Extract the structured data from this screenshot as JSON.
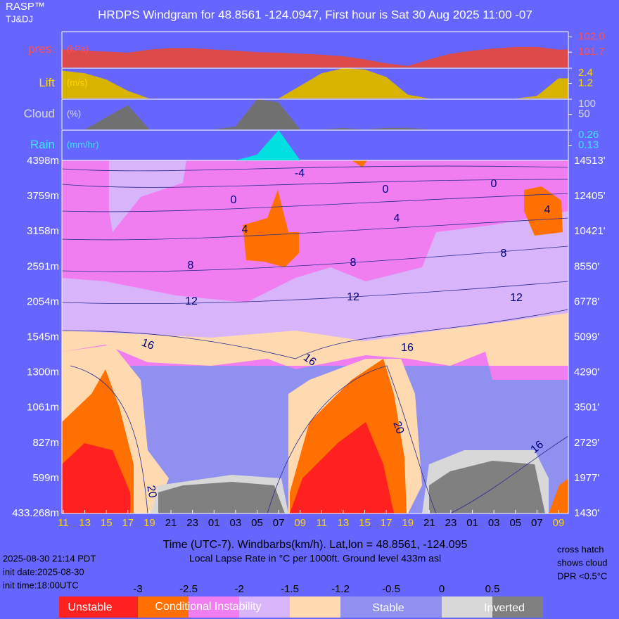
{
  "header": {
    "brand": "RASP™",
    "authors": "TJ&DJ",
    "title": "HRDPS Windgram for 48.8561 -124.0947, First hour is Sat 30 Aug 2025 11:00 -07"
  },
  "chart_data": [
    {
      "type": "area",
      "label": "pres.",
      "unit_label": "(kPa)",
      "color": "#dc4a4a",
      "label_color": "#ff5050",
      "values": [
        101.75,
        101.73,
        101.71,
        101.69,
        101.75,
        101.78,
        101.78,
        101.75,
        101.73,
        101.7,
        101.69,
        101.67,
        101.65,
        101.62,
        101.56,
        101.48,
        101.43,
        101.56,
        101.67,
        101.73,
        101.77,
        101.8,
        101.8,
        101.75
      ],
      "ylim": [
        101.4,
        102.1
      ],
      "yticks": [
        {
          "value": 102,
          "label": "102.0"
        },
        101.7
      ]
    },
    {
      "type": "area",
      "label": "Lift",
      "unit_label": "(m/s)",
      "color": "#d8b400",
      "label_color": "#ffd700",
      "values": [
        2.2,
        2.0,
        1.5,
        0.6,
        0,
        0,
        0,
        0,
        0,
        0,
        0,
        1.0,
        2.0,
        2.4,
        2.3,
        1.7,
        0.3,
        0,
        0,
        0,
        0,
        0,
        0.2,
        1.6
      ],
      "ylim": [
        0,
        2.4
      ],
      "yticks": [
        2.4,
        1.2
      ]
    },
    {
      "type": "area",
      "label": "Cloud",
      "unit_label": "(%)",
      "color": "#707070",
      "label_color": "#d8d8d8",
      "values": [
        0,
        0,
        40,
        80,
        0,
        0,
        0,
        0,
        10,
        100,
        90,
        0,
        0,
        5,
        0,
        5,
        5,
        0,
        0,
        0,
        0,
        0,
        0,
        0
      ],
      "ylim": [
        0,
        100
      ],
      "yticks": [
        100,
        50
      ]
    },
    {
      "type": "area",
      "label": "Rain",
      "unit_label": "(mm/hr)",
      "color": "#00e0e0",
      "label_color": "#40e0ff",
      "values": [
        0,
        0,
        0,
        0,
        0,
        0,
        0,
        0,
        0,
        0.05,
        0.26,
        0,
        0,
        0,
        0,
        0,
        0,
        0,
        0,
        0,
        0,
        0,
        0,
        0
      ],
      "ylim": [
        0,
        0.26
      ],
      "yticks": [
        0.26,
        0.13
      ]
    },
    {
      "type": "windgram",
      "categories": [
        "11",
        "13",
        "15",
        "17",
        "19",
        "21",
        "23",
        "01",
        "03",
        "05",
        "07",
        "09",
        "11",
        "13",
        "15",
        "17",
        "19",
        "21",
        "23",
        "01",
        "03",
        "05",
        "07",
        "09"
      ],
      "category_colors": [
        "#ffd700",
        "#ffd700",
        "#ffd700",
        "#ffd700",
        "#ffd700",
        "#000000",
        "#000000",
        "#000000",
        "#000000",
        "#000000",
        "#000000",
        "#ffd700",
        "#ffd700",
        "#ffd700",
        "#ffd700",
        "#ffd700",
        "#ffd700",
        "#000000",
        "#000000",
        "#000000",
        "#000000",
        "#000000",
        "#000000",
        "#ffd700"
      ],
      "y_labels_left": [
        "4398m",
        "3759m",
        "3158m",
        "2591m",
        "2054m",
        "1545m",
        "1300m",
        "1061m",
        "827m",
        "599m",
        "433.268m"
      ],
      "y_labels_right": [
        "14513'",
        "12405'",
        "10421'",
        "8550'",
        "6778'",
        "5099'",
        "4290'",
        "3501'",
        "2729'",
        "1977'",
        "1430'"
      ],
      "contour_labels": [
        -4,
        0,
        0,
        0,
        4,
        4,
        4,
        8,
        8,
        8,
        12,
        12,
        12,
        16,
        16,
        16,
        20,
        20,
        16
      ],
      "x_label": "Time (UTC-7). Windbarbs(km/h). Lat,lon = 48.8561, -124.095",
      "subtitle": "Local Lapse Rate in °C per 1000ft.   Ground level 433m asl"
    }
  ],
  "footer": {
    "timestamp": "2025-08-30 21:14 PDT",
    "init_date": "init date:2025-08-30",
    "init_time": "init time:18:00UTC",
    "note": [
      "cross hatch",
      "shows cloud",
      "DPR <0.5°C"
    ]
  },
  "legend": {
    "ticks": [
      -3,
      -2.5,
      -2,
      -1.5,
      -1.2,
      -0.5,
      0,
      0.5
    ],
    "colors": [
      "#ff2020",
      "#ff7000",
      "#f07ef0",
      "#d8b4fa",
      "#ffdab0",
      "#9090f0",
      "#9090f0",
      "#d8d8d8",
      "#808080"
    ],
    "labels": [
      "Unstable",
      "Conditional Instability",
      "Stable",
      "Inverted"
    ]
  }
}
